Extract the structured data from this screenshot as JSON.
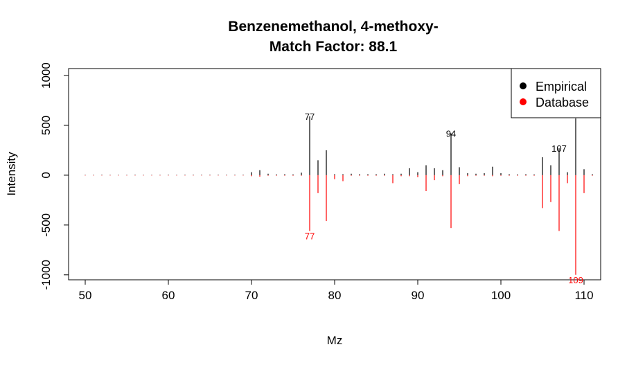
{
  "chart_data": {
    "type": "bar",
    "title": "Benzenemethanol, 4-methoxy-",
    "subtitle": "Match Factor: 88.1",
    "xlabel": "Mz",
    "ylabel": "Intensity",
    "xlim": [
      48,
      112
    ],
    "ylim": [
      -1050,
      1070
    ],
    "xticks": [
      50,
      60,
      70,
      80,
      90,
      100,
      110
    ],
    "yticks": [
      -1000,
      -500,
      0,
      500,
      1000
    ],
    "grid": false,
    "legend_position": "top-right",
    "series": [
      {
        "name": "Empirical",
        "color": "#000000",
        "x": [
          50,
          51,
          52,
          53,
          54,
          55,
          56,
          57,
          58,
          59,
          60,
          61,
          62,
          63,
          64,
          65,
          66,
          67,
          68,
          69,
          70,
          71,
          72,
          73,
          74,
          75,
          76,
          77,
          78,
          79,
          80,
          81,
          82,
          83,
          84,
          85,
          86,
          87,
          88,
          89,
          90,
          91,
          92,
          93,
          94,
          95,
          96,
          97,
          98,
          99,
          100,
          101,
          102,
          103,
          104,
          105,
          106,
          107,
          108,
          109,
          110,
          111
        ],
        "values": [
          3,
          3,
          4,
          3,
          3,
          3,
          4,
          3,
          3,
          3,
          4,
          3,
          4,
          4,
          4,
          4,
          4,
          4,
          4,
          4,
          30,
          50,
          15,
          8,
          10,
          8,
          25,
          590,
          150,
          250,
          10,
          10,
          15,
          10,
          10,
          10,
          15,
          10,
          15,
          70,
          30,
          100,
          70,
          50,
          420,
          80,
          20,
          15,
          20,
          85,
          20,
          10,
          8,
          10,
          8,
          180,
          100,
          270,
          30,
          570,
          60,
          10
        ]
      },
      {
        "name": "Database",
        "color": "#ff0000",
        "x": [
          50,
          51,
          52,
          53,
          54,
          55,
          56,
          57,
          58,
          59,
          60,
          61,
          62,
          63,
          64,
          65,
          66,
          67,
          68,
          69,
          70,
          71,
          72,
          73,
          74,
          75,
          76,
          77,
          78,
          79,
          80,
          81,
          82,
          83,
          84,
          85,
          86,
          87,
          88,
          89,
          90,
          91,
          92,
          93,
          94,
          95,
          96,
          97,
          98,
          99,
          100,
          101,
          102,
          103,
          104,
          105,
          106,
          107,
          108,
          109,
          110,
          111
        ],
        "values": [
          -3,
          -3,
          -3,
          -3,
          -3,
          -3,
          -3,
          -3,
          -3,
          -3,
          -3,
          -3,
          -3,
          -3,
          -3,
          -3,
          -3,
          -3,
          -3,
          -3,
          -10,
          -15,
          -5,
          -5,
          -5,
          -5,
          -5,
          -560,
          -180,
          -460,
          -40,
          -60,
          -5,
          -5,
          -5,
          -5,
          -5,
          -80,
          -10,
          -10,
          -20,
          -160,
          -50,
          -10,
          -530,
          -90,
          -10,
          -5,
          -5,
          -10,
          -5,
          -5,
          -5,
          -5,
          -5,
          -330,
          -270,
          -560,
          -80,
          -1000,
          -180,
          -5
        ]
      }
    ],
    "annotations": [
      {
        "text": "77",
        "x": 77,
        "y": 590,
        "color": "#000000"
      },
      {
        "text": "94",
        "x": 94,
        "y": 420,
        "color": "#000000"
      },
      {
        "text": "107",
        "x": 107,
        "y": 270,
        "color": "#000000"
      },
      {
        "text": "77",
        "x": 77,
        "y": -560,
        "color": "#ff0000"
      },
      {
        "text": "109",
        "x": 109,
        "y": -1000,
        "color": "#ff0000"
      }
    ]
  }
}
